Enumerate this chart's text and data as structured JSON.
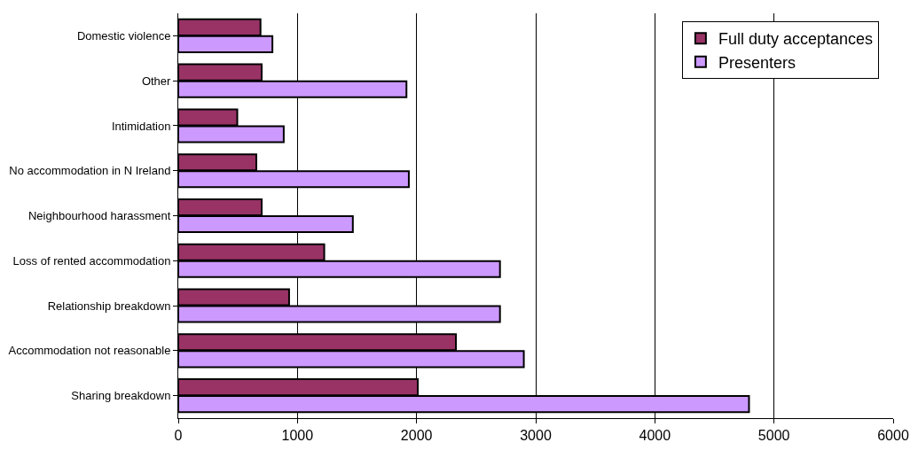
{
  "chart_data": {
    "type": "bar",
    "orientation": "horizontal",
    "categories": [
      "Domestic violence",
      "Other",
      "Intimidation",
      "No accommodation in N Ireland",
      "Neighbourhood harassment",
      "Loss of rented accommodation",
      "Relationship breakdown",
      "Accommodation not reasonable",
      "Sharing breakdown"
    ],
    "series": [
      {
        "name": "Full duty acceptances",
        "color": "#993366",
        "values": [
          690,
          700,
          495,
          655,
          700,
          1225,
          930,
          2330,
          2010
        ]
      },
      {
        "name": "Presenters",
        "color": "#cc99ff",
        "values": [
          790,
          1915,
          885,
          1935,
          1465,
          2700,
          2700,
          2900,
          4790
        ]
      }
    ],
    "xlim": [
      0,
      6000
    ],
    "xticks": [
      0,
      1000,
      2000,
      3000,
      4000,
      5000,
      6000
    ],
    "grid": "x",
    "legend": "top right"
  }
}
